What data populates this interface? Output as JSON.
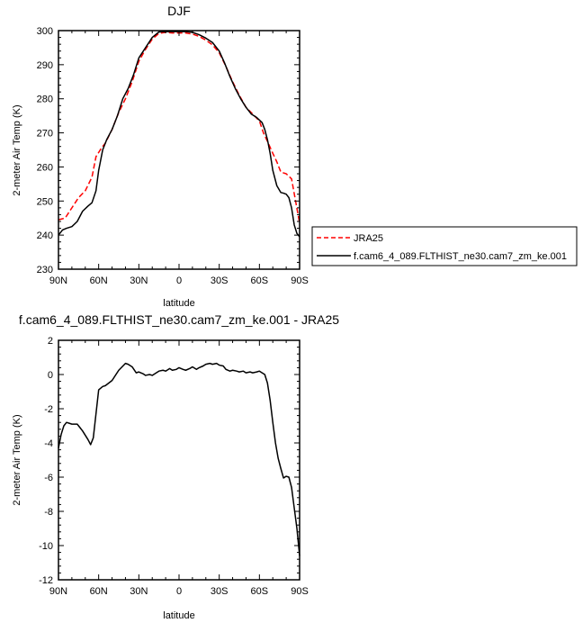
{
  "chart_data": [
    {
      "type": "line",
      "title": "DJF",
      "xlabel": "latitude",
      "ylabel": "2-meter Air Temp (K)",
      "xlim": [
        90,
        -90
      ],
      "ylim": [
        230,
        300
      ],
      "xticks": [
        90,
        60,
        30,
        0,
        -30,
        -60,
        -90
      ],
      "xtick_labels": [
        "90N",
        "60N",
        "30N",
        "0",
        "30S",
        "60S",
        "90S"
      ],
      "yticks": [
        230,
        240,
        250,
        260,
        270,
        280,
        290,
        300
      ],
      "ytick_labels": [
        "230",
        "240",
        "250",
        "260",
        "270",
        "280",
        "290",
        "300"
      ],
      "grid": false,
      "legend_position": "right",
      "series": [
        {
          "name": "JRA25",
          "color": "#ff0000",
          "dash": "dashed",
          "x": [
            90,
            85,
            80,
            75,
            70,
            65,
            62,
            58,
            55,
            50,
            45,
            40,
            35,
            30,
            25,
            20,
            15,
            10,
            5,
            0,
            -5,
            -10,
            -15,
            -20,
            -25,
            -30,
            -35,
            -40,
            -45,
            -50,
            -55,
            -60,
            -63,
            -66,
            -70,
            -73,
            -76,
            -80,
            -84,
            -87,
            -90
          ],
          "y": [
            244.5,
            245,
            248,
            251,
            253,
            257,
            263,
            265.5,
            267,
            271,
            276,
            280,
            285,
            291,
            294.5,
            297.5,
            299.2,
            299.5,
            299.3,
            299.3,
            299.3,
            299,
            298.3,
            297.2,
            295.8,
            293.5,
            289.5,
            285,
            281,
            277.5,
            275.5,
            273.5,
            270,
            267.5,
            264,
            261.5,
            258.5,
            258,
            256.5,
            250,
            243.5
          ]
        },
        {
          "name": "f.cam6_4_089.FLTHIST_ne30.cam7_zm_ke.001",
          "color": "#000000",
          "dash": "solid",
          "x": [
            90,
            87,
            84,
            80,
            76,
            72,
            68,
            65,
            62,
            60,
            57,
            54,
            50,
            46,
            42,
            38,
            34,
            30,
            25,
            20,
            15,
            10,
            5,
            0,
            -5,
            -10,
            -15,
            -20,
            -25,
            -30,
            -34,
            -38,
            -42,
            -46,
            -50,
            -54,
            -58,
            -62,
            -64,
            -66,
            -68,
            -70,
            -73,
            -76,
            -78,
            -80,
            -82,
            -84,
            -86,
            -88,
            -90
          ],
          "y": [
            240,
            241.5,
            242,
            242.5,
            244,
            247,
            248.5,
            249.5,
            253,
            259,
            265,
            268,
            271,
            275,
            280,
            283,
            287,
            292,
            295,
            298,
            299.6,
            299.7,
            299.7,
            299.7,
            299.7,
            299.5,
            298.8,
            297.8,
            296.5,
            294,
            290.5,
            286.5,
            283,
            280,
            277.5,
            275.5,
            274.5,
            273,
            271,
            268,
            264,
            259,
            254.5,
            252.5,
            252.3,
            252,
            251,
            248,
            243,
            240.5,
            239.5
          ]
        }
      ]
    },
    {
      "type": "line",
      "title": "f.cam6_4_089.FLTHIST_ne30.cam7_zm_ke.001 - JRA25",
      "xlabel": "latitude",
      "ylabel": "2-meter Air Temp (K)",
      "xlim": [
        90,
        -90
      ],
      "ylim": [
        -12,
        2
      ],
      "xticks": [
        90,
        60,
        30,
        0,
        -30,
        -60,
        -90
      ],
      "xtick_labels": [
        "90N",
        "60N",
        "30N",
        "0",
        "30S",
        "60S",
        "90S"
      ],
      "yticks": [
        -12,
        -10,
        -8,
        -6,
        -4,
        -2,
        0,
        2
      ],
      "ytick_labels": [
        "-12",
        "-10",
        "-8",
        "-6",
        "-4",
        "-2",
        "0",
        "2"
      ],
      "grid": false,
      "series": [
        {
          "color": "#000000",
          "dash": "solid",
          "x": [
            90,
            88,
            86,
            84,
            82,
            80,
            78,
            76,
            74,
            72,
            70,
            68,
            66,
            64,
            62,
            60,
            57,
            55,
            50,
            45,
            40,
            38,
            35,
            32,
            30,
            27,
            25,
            22,
            20,
            17,
            15,
            12,
            10,
            7,
            5,
            2,
            0,
            -3,
            -5,
            -8,
            -10,
            -13,
            -15,
            -18,
            -20,
            -23,
            -25,
            -28,
            -30,
            -33,
            -35,
            -38,
            -40,
            -43,
            -45,
            -48,
            -50,
            -53,
            -55,
            -58,
            -60,
            -62,
            -64,
            -66,
            -68,
            -70,
            -72,
            -74,
            -76,
            -78,
            -80,
            -82,
            -84,
            -86,
            -88,
            -90
          ],
          "y": [
            -4.3,
            -3.5,
            -3.0,
            -2.8,
            -2.85,
            -2.9,
            -2.9,
            -2.9,
            -3.1,
            -3.3,
            -3.55,
            -3.8,
            -4.1,
            -3.7,
            -2.3,
            -0.9,
            -0.7,
            -0.65,
            -0.35,
            0.25,
            0.65,
            0.6,
            0.45,
            0.1,
            0.15,
            0.05,
            -0.05,
            0.0,
            -0.05,
            0.1,
            0.2,
            0.25,
            0.2,
            0.35,
            0.25,
            0.3,
            0.4,
            0.3,
            0.25,
            0.35,
            0.45,
            0.3,
            0.4,
            0.5,
            0.6,
            0.65,
            0.6,
            0.65,
            0.55,
            0.5,
            0.3,
            0.2,
            0.25,
            0.2,
            0.15,
            0.2,
            0.1,
            0.15,
            0.1,
            0.15,
            0.2,
            0.1,
            0.0,
            -0.5,
            -1.5,
            -2.8,
            -4.0,
            -4.9,
            -5.5,
            -6.05,
            -5.95,
            -6.0,
            -6.6,
            -7.8,
            -9.0,
            -10.6
          ]
        }
      ]
    }
  ]
}
